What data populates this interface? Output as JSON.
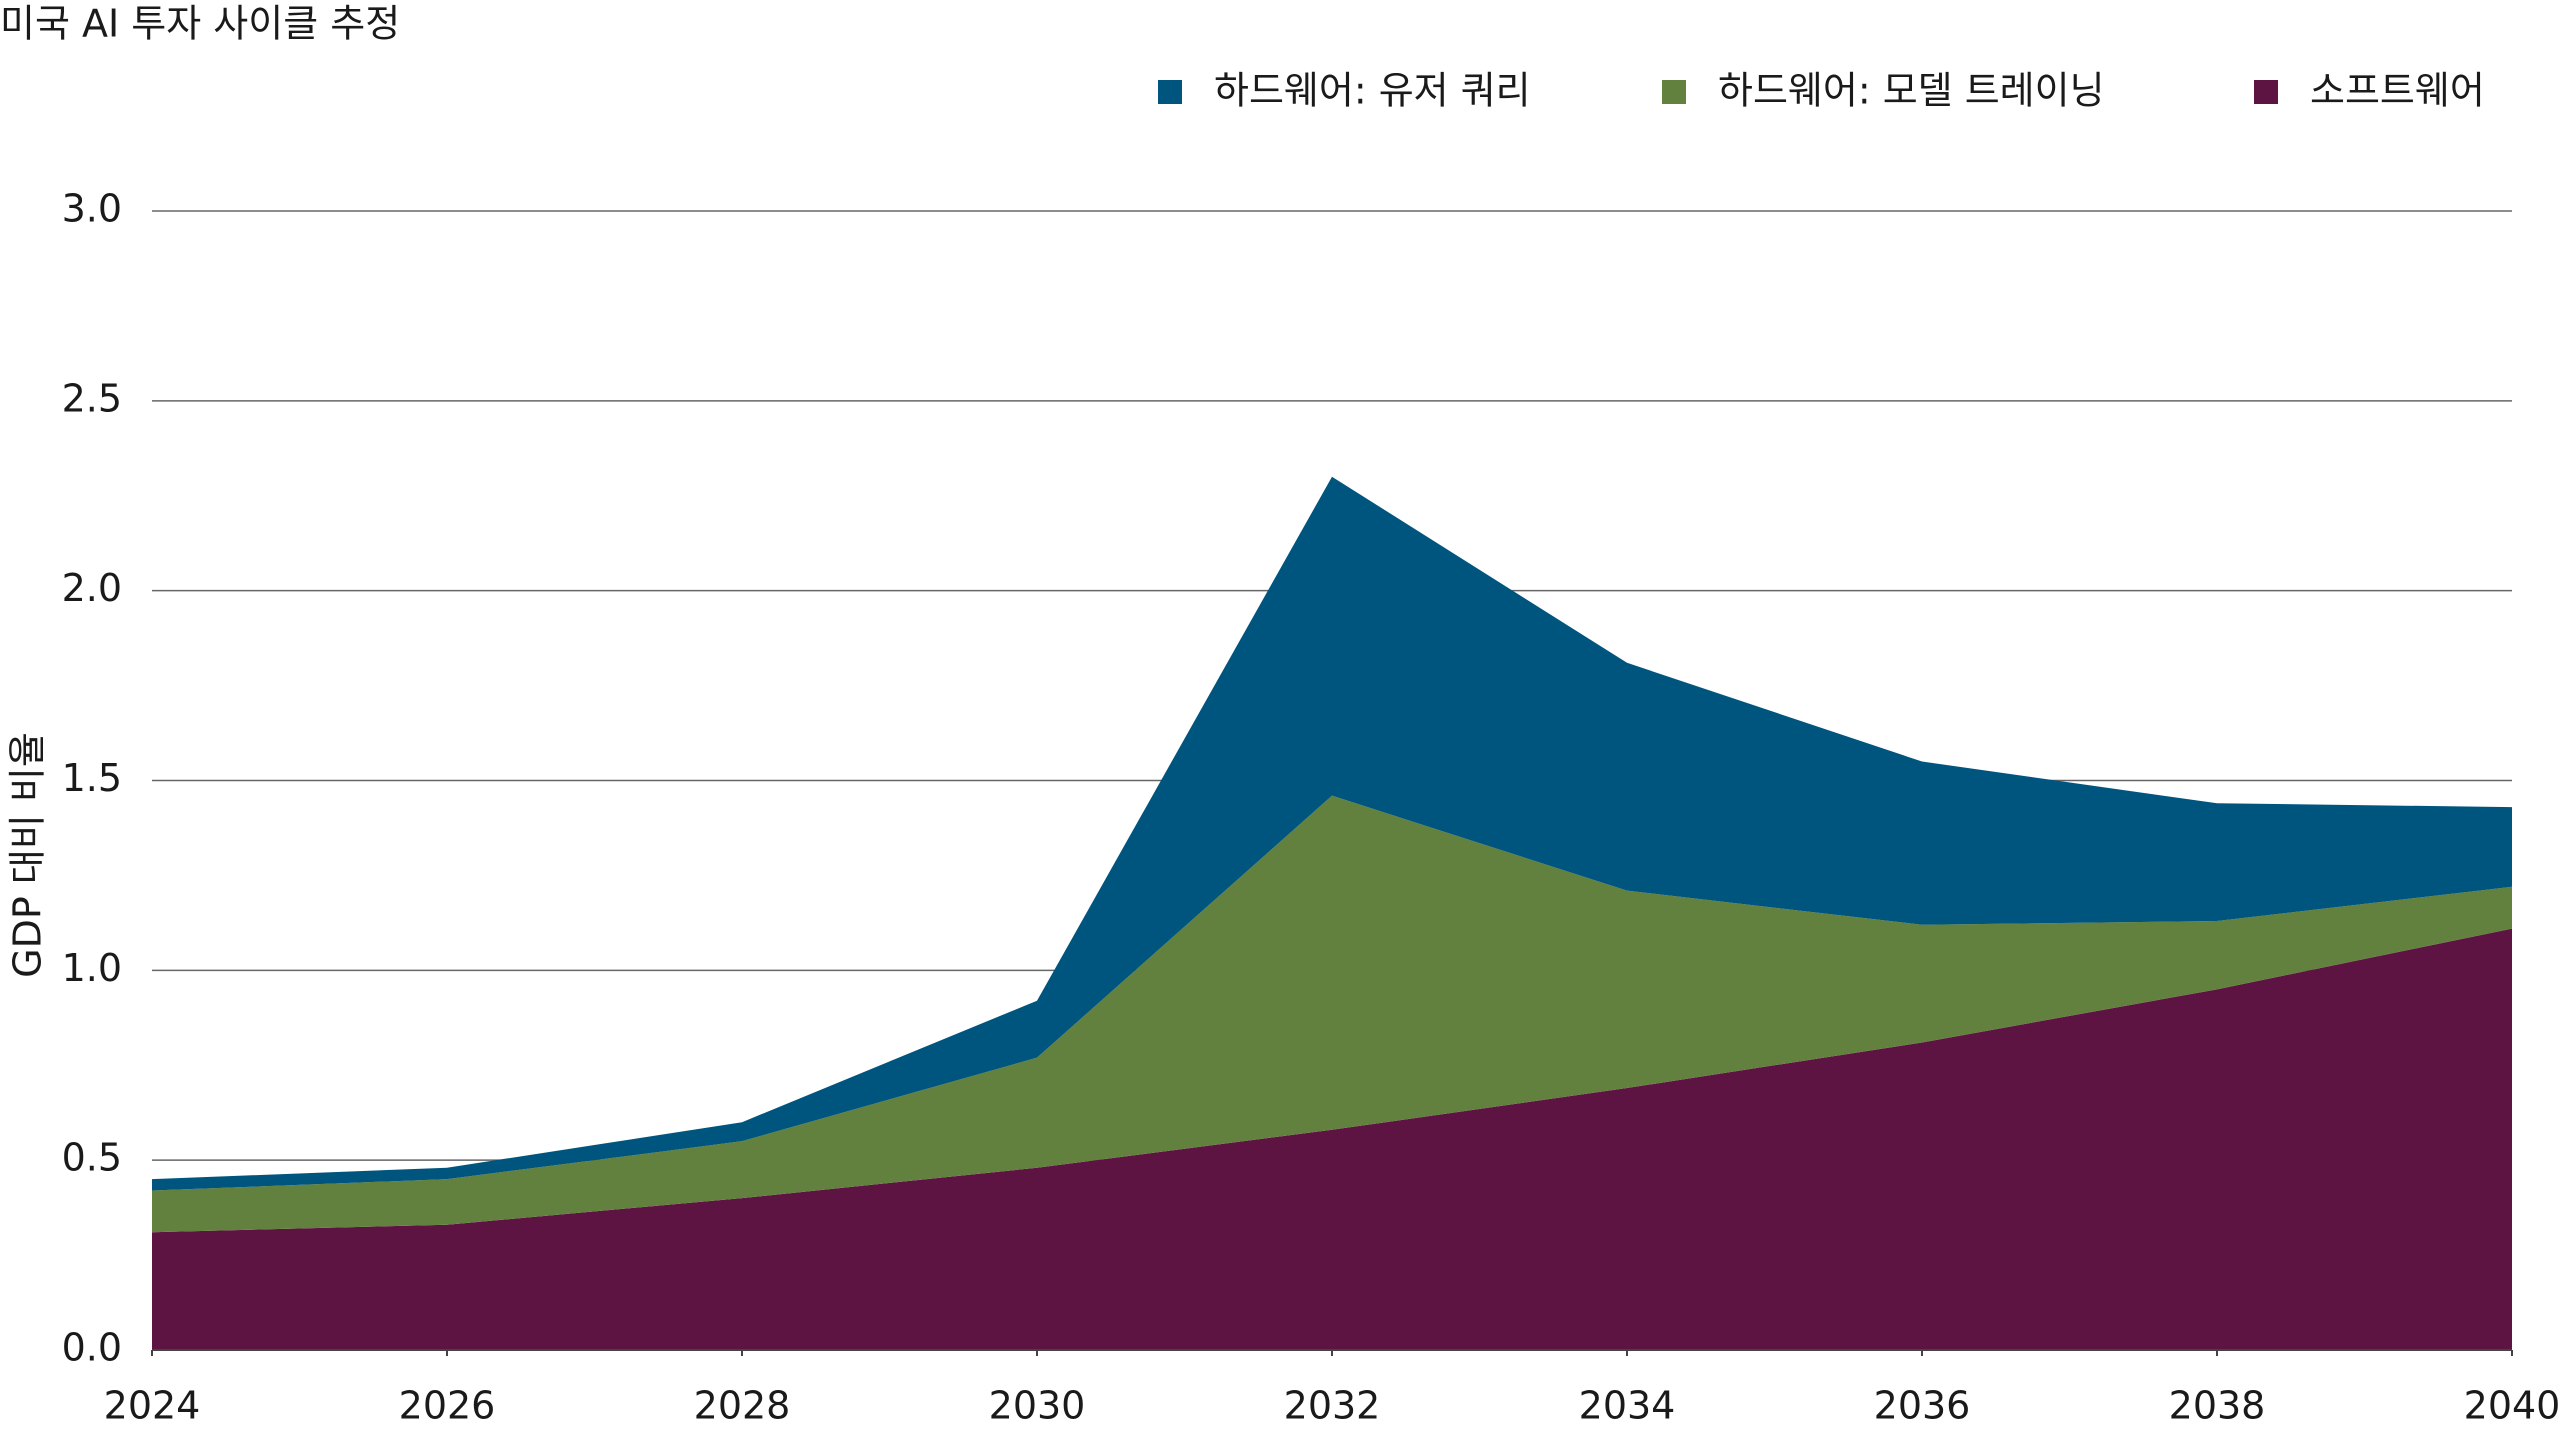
{
  "chart_data": {
    "type": "stacked-area",
    "title": "미국 AI 투자 사이클 추정",
    "y_label": "GDP 대비 비율",
    "x": [
      2024,
      2026,
      2028,
      2030,
      2032,
      2034,
      2036,
      2038,
      2040
    ],
    "series": [
      {
        "name": "하드웨어: 유저 쿼리",
        "color": "#00557f",
        "values": [
          0.03,
          0.03,
          0.05,
          0.15,
          0.84,
          0.6,
          0.43,
          0.31,
          0.21
        ]
      },
      {
        "name": "하드웨어: 모델 트레이닝",
        "color": "#62813e",
        "values": [
          0.11,
          0.12,
          0.15,
          0.29,
          0.88,
          0.52,
          0.31,
          0.18,
          0.11
        ]
      },
      {
        "name": "소프트웨어",
        "color": "#5e1442",
        "values": [
          0.31,
          0.33,
          0.4,
          0.48,
          0.58,
          0.69,
          0.81,
          0.95,
          1.11
        ]
      }
    ],
    "xlim": [
      2024,
      2040
    ],
    "xticks": [
      2024,
      2026,
      2028,
      2030,
      2032,
      2034,
      2036,
      2038,
      2040
    ],
    "ylim": [
      0,
      3
    ],
    "yticks": [
      {
        "value": 0,
        "label": "0.0"
      },
      0.5,
      {
        "value": 1,
        "label": "1.0"
      },
      1.5,
      {
        "value": 2,
        "label": "2.0"
      },
      2.5,
      {
        "value": 3,
        "label": "3.0"
      }
    ],
    "grid": true,
    "legend": "top-right"
  }
}
